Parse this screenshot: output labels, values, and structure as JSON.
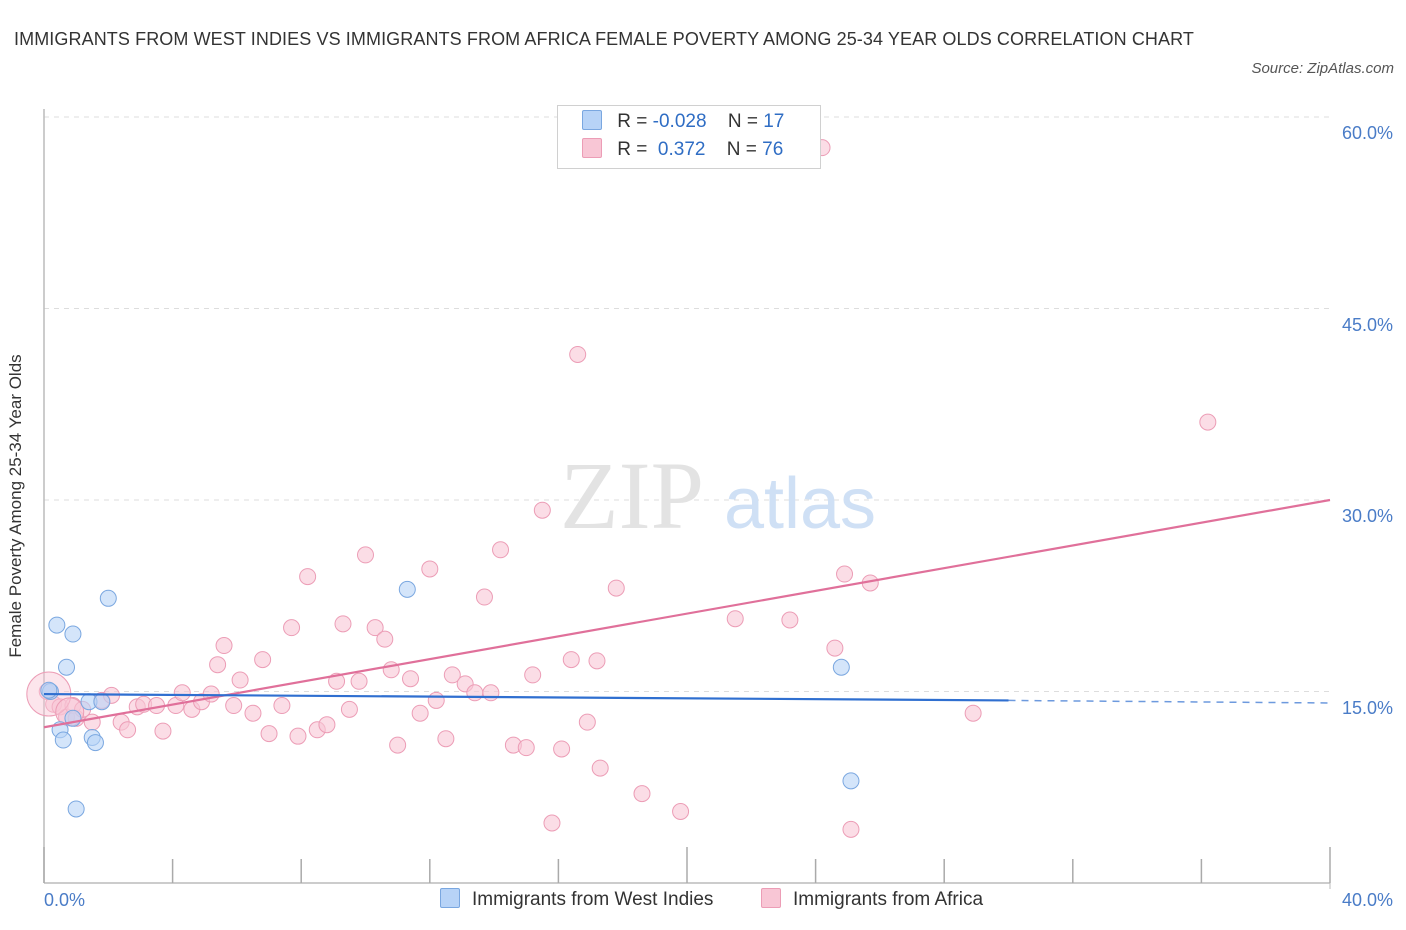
{
  "title": "IMMIGRANTS FROM WEST INDIES VS IMMIGRANTS FROM AFRICA FEMALE POVERTY AMONG 25-34 YEAR OLDS CORRELATION CHART",
  "source": "Source: ZipAtlas.com",
  "watermark": {
    "zip": "ZIP",
    "atlas": "atlas"
  },
  "legend": {
    "row1": {
      "r_label": "R = ",
      "r_value": "-0.028",
      "n_label": "N = ",
      "n_value": "17"
    },
    "row2": {
      "r_label": "R = ",
      "r_value": " 0.372",
      "n_label": "N = ",
      "n_value": "76"
    }
  },
  "colors": {
    "west_indies_fill": "#b7d3f7",
    "west_indies_stroke": "#7aa7e0",
    "west_indies_line": "#2f6fd0",
    "africa_fill": "#f8c6d5",
    "africa_stroke": "#ec9db6",
    "africa_line": "#e0709a",
    "tick_label": "#4a7cc7",
    "grid": "#dddddd"
  },
  "chart_data": {
    "type": "scatter",
    "title": "IMMIGRANTS FROM WEST INDIES VS IMMIGRANTS FROM AFRICA FEMALE POVERTY AMONG 25-34 YEAR OLDS CORRELATION CHART",
    "xlabel": "",
    "ylabel": "Female Poverty Among 25-34 Year Olds",
    "xlim": [
      0,
      40
    ],
    "ylim": [
      0,
      60
    ],
    "x_tick_labels": [
      "0.0%",
      "40.0%"
    ],
    "y_ticks": [
      15,
      30,
      45,
      60
    ],
    "y_tick_labels": [
      "15.0%",
      "30.0%",
      "45.0%",
      "60.0%"
    ],
    "grid": "horizontal dashed",
    "legend_position": "top-center",
    "series": [
      {
        "name": "Immigrants from West Indies",
        "R": -0.028,
        "N": 17,
        "trend": {
          "x0": 0,
          "y0": 14.8,
          "x1": 30,
          "y1": 14.3,
          "dashed_to_x": 40,
          "dashed_to_y": 14.1
        },
        "points": [
          [
            0.2,
            15.0
          ],
          [
            0.4,
            20.2
          ],
          [
            0.5,
            12.0
          ],
          [
            0.6,
            11.2
          ],
          [
            0.7,
            16.9
          ],
          [
            0.9,
            19.5
          ],
          [
            0.9,
            12.9
          ],
          [
            1.0,
            5.8
          ],
          [
            1.4,
            14.2
          ],
          [
            1.5,
            11.4
          ],
          [
            1.6,
            11.0
          ],
          [
            1.8,
            14.2
          ],
          [
            2.0,
            22.3
          ],
          [
            11.3,
            23.0
          ],
          [
            24.8,
            16.9
          ],
          [
            25.1,
            8.0
          ],
          [
            0.15,
            15.1
          ]
        ]
      },
      {
        "name": "Immigrants from Africa",
        "R": 0.372,
        "N": 76,
        "trend": {
          "x0": 0,
          "y0": 12.2,
          "x1": 40,
          "y1": 30.0
        },
        "points": [
          [
            0.1,
            15.0
          ],
          [
            0.3,
            14.0
          ],
          [
            0.5,
            13.8
          ],
          [
            0.7,
            13.0
          ],
          [
            0.9,
            13.9
          ],
          [
            1.0,
            12.9
          ],
          [
            1.2,
            13.6
          ],
          [
            1.5,
            12.6
          ],
          [
            1.8,
            14.3
          ],
          [
            2.1,
            14.7
          ],
          [
            2.4,
            12.6
          ],
          [
            2.6,
            12.0
          ],
          [
            2.9,
            13.8
          ],
          [
            3.1,
            14.0
          ],
          [
            3.5,
            13.9
          ],
          [
            3.7,
            11.9
          ],
          [
            4.1,
            13.9
          ],
          [
            4.3,
            14.9
          ],
          [
            4.6,
            13.6
          ],
          [
            4.9,
            14.2
          ],
          [
            5.2,
            14.8
          ],
          [
            5.4,
            17.1
          ],
          [
            5.6,
            18.6
          ],
          [
            5.9,
            13.9
          ],
          [
            6.1,
            15.9
          ],
          [
            6.5,
            13.3
          ],
          [
            6.8,
            17.5
          ],
          [
            7.0,
            11.7
          ],
          [
            7.4,
            13.9
          ],
          [
            7.7,
            20.0
          ],
          [
            7.9,
            11.5
          ],
          [
            8.2,
            24.0
          ],
          [
            8.5,
            12.0
          ],
          [
            8.8,
            12.4
          ],
          [
            9.1,
            15.8
          ],
          [
            9.3,
            20.3
          ],
          [
            9.5,
            13.6
          ],
          [
            9.8,
            15.8
          ],
          [
            10.0,
            25.7
          ],
          [
            10.3,
            20.0
          ],
          [
            10.6,
            19.1
          ],
          [
            10.8,
            16.7
          ],
          [
            11.0,
            10.8
          ],
          [
            11.4,
            16.0
          ],
          [
            11.7,
            13.3
          ],
          [
            12.0,
            24.6
          ],
          [
            12.2,
            14.3
          ],
          [
            12.5,
            11.3
          ],
          [
            12.7,
            16.3
          ],
          [
            13.1,
            15.6
          ],
          [
            13.4,
            14.9
          ],
          [
            13.7,
            22.4
          ],
          [
            13.9,
            14.9
          ],
          [
            14.2,
            26.1
          ],
          [
            14.6,
            10.8
          ],
          [
            15.0,
            10.6
          ],
          [
            15.2,
            16.3
          ],
          [
            15.5,
            29.2
          ],
          [
            15.8,
            4.7
          ],
          [
            16.1,
            10.5
          ],
          [
            16.4,
            17.5
          ],
          [
            16.6,
            41.4
          ],
          [
            16.9,
            12.6
          ],
          [
            17.2,
            17.4
          ],
          [
            17.3,
            9.0
          ],
          [
            17.8,
            23.1
          ],
          [
            18.6,
            7.0
          ],
          [
            19.8,
            5.6
          ],
          [
            21.5,
            20.7
          ],
          [
            23.2,
            20.6
          ],
          [
            24.6,
            18.4
          ],
          [
            24.9,
            24.2
          ],
          [
            24.2,
            57.6
          ],
          [
            25.1,
            4.2
          ],
          [
            25.7,
            23.5
          ],
          [
            28.9,
            13.3
          ],
          [
            36.2,
            36.1
          ]
        ]
      }
    ]
  },
  "bottom_legend": {
    "west_indies": "Immigrants from West Indies",
    "africa": "Immigrants from Africa"
  }
}
